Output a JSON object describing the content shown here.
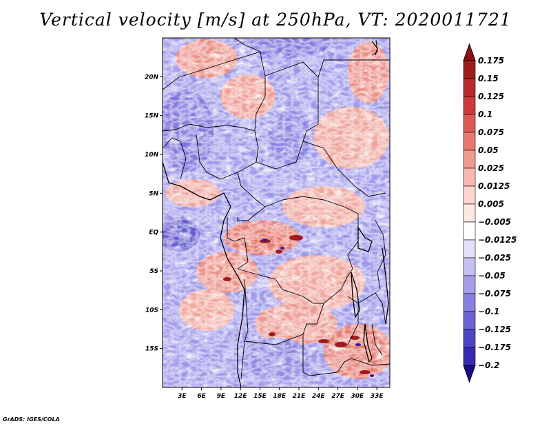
{
  "title": "Vertical velocity [m/s] at 250hPa, VT: 2020011721",
  "credit": "GrADS: IGES/COLA",
  "map": {
    "lon_range": [
      0,
      35
    ],
    "lat_range": [
      -20,
      25
    ],
    "x_ticks": [
      {
        "value": 3,
        "label": "3E"
      },
      {
        "value": 6,
        "label": "6E"
      },
      {
        "value": 9,
        "label": "9E"
      },
      {
        "value": 12,
        "label": "12E"
      },
      {
        "value": 15,
        "label": "15E"
      },
      {
        "value": 18,
        "label": "18E"
      },
      {
        "value": 21,
        "label": "21E"
      },
      {
        "value": 24,
        "label": "24E"
      },
      {
        "value": 27,
        "label": "27E"
      },
      {
        "value": 30,
        "label": "30E"
      },
      {
        "value": 33,
        "label": "33E"
      }
    ],
    "y_ticks": [
      {
        "value": 20,
        "label": "20N"
      },
      {
        "value": 15,
        "label": "15N"
      },
      {
        "value": 10,
        "label": "10N"
      },
      {
        "value": 5,
        "label": "5N"
      },
      {
        "value": 0,
        "label": "EQ"
      },
      {
        "value": -5,
        "label": "5S"
      },
      {
        "value": -10,
        "label": "10S"
      },
      {
        "value": -15,
        "label": "15S"
      }
    ]
  },
  "colorbar": {
    "levels": [
      {
        "label": "0.175",
        "color": "#a11a1e"
      },
      {
        "label": "0.15",
        "color": "#b82a2c"
      },
      {
        "label": "0.125",
        "color": "#cc3b3b"
      },
      {
        "label": "0.1",
        "color": "#dd5a55"
      },
      {
        "label": "0.075",
        "color": "#e97970"
      },
      {
        "label": "0.05",
        "color": "#f29a8f"
      },
      {
        "label": "0.025",
        "color": "#f8b9b0"
      },
      {
        "label": "0.0125",
        "color": "#fcd6cf"
      },
      {
        "label": "0.005",
        "color": "#fde9e4"
      },
      {
        "label": "−0.005",
        "color": "#ffffff"
      },
      {
        "label": "−0.0125",
        "color": "#e3e1fa"
      },
      {
        "label": "−0.025",
        "color": "#c5c1f3"
      },
      {
        "label": "−0.05",
        "color": "#a59fea"
      },
      {
        "label": "−0.075",
        "color": "#8780e0"
      },
      {
        "label": "−0.1",
        "color": "#6a62d5"
      },
      {
        "label": "−0.125",
        "color": "#4e45c6"
      },
      {
        "label": "−0.175",
        "color": "#3729b0"
      },
      {
        "label": "−0.2",
        "color": "#23149a"
      }
    ],
    "top_color": "#8f0f14",
    "bottom_color": "#180c8a"
  }
}
